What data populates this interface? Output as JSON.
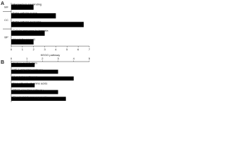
{
  "chart_data": [
    {
      "type": "bar",
      "label": "A",
      "orientation": "horizontal",
      "color": "#000000",
      "groups": [
        {
          "name": "MF",
          "categories": [
            "Magnesium ion binding"
          ],
          "values": [
            2
          ]
        },
        {
          "name": "CC",
          "categories": [
            "Extra cellular space",
            "Extra cellular exosome"
          ],
          "values": [
            4,
            6.5
          ]
        },
        {
          "name": "BP",
          "categories": [
            "Cellular response to hypoxia",
            "Glycolytic process"
          ],
          "values": [
            3,
            2
          ]
        }
      ],
      "xlim": [
        0,
        7
      ],
      "xticks": [
        0,
        1,
        2,
        3,
        4,
        5,
        6,
        7
      ]
    },
    {
      "type": "bar",
      "label": "B",
      "orientation": "horizontal",
      "color": "#000000",
      "xlabel": "KEGG pathway",
      "groups": [
        {
          "categories": [
            "Carbon metabolism",
            "HIF-1 signaling pathway",
            "Metabolic pathways",
            "Biosynthesis of amino acids",
            "PPAR signaling pathway",
            "Glycolysis/gluconeogenesis"
          ],
          "values": [
            1.5,
            3,
            4,
            1.5,
            3,
            3.5
          ]
        }
      ],
      "xlim": [
        0,
        5
      ],
      "xticks": [
        0,
        1,
        2,
        3,
        4,
        5
      ]
    }
  ]
}
